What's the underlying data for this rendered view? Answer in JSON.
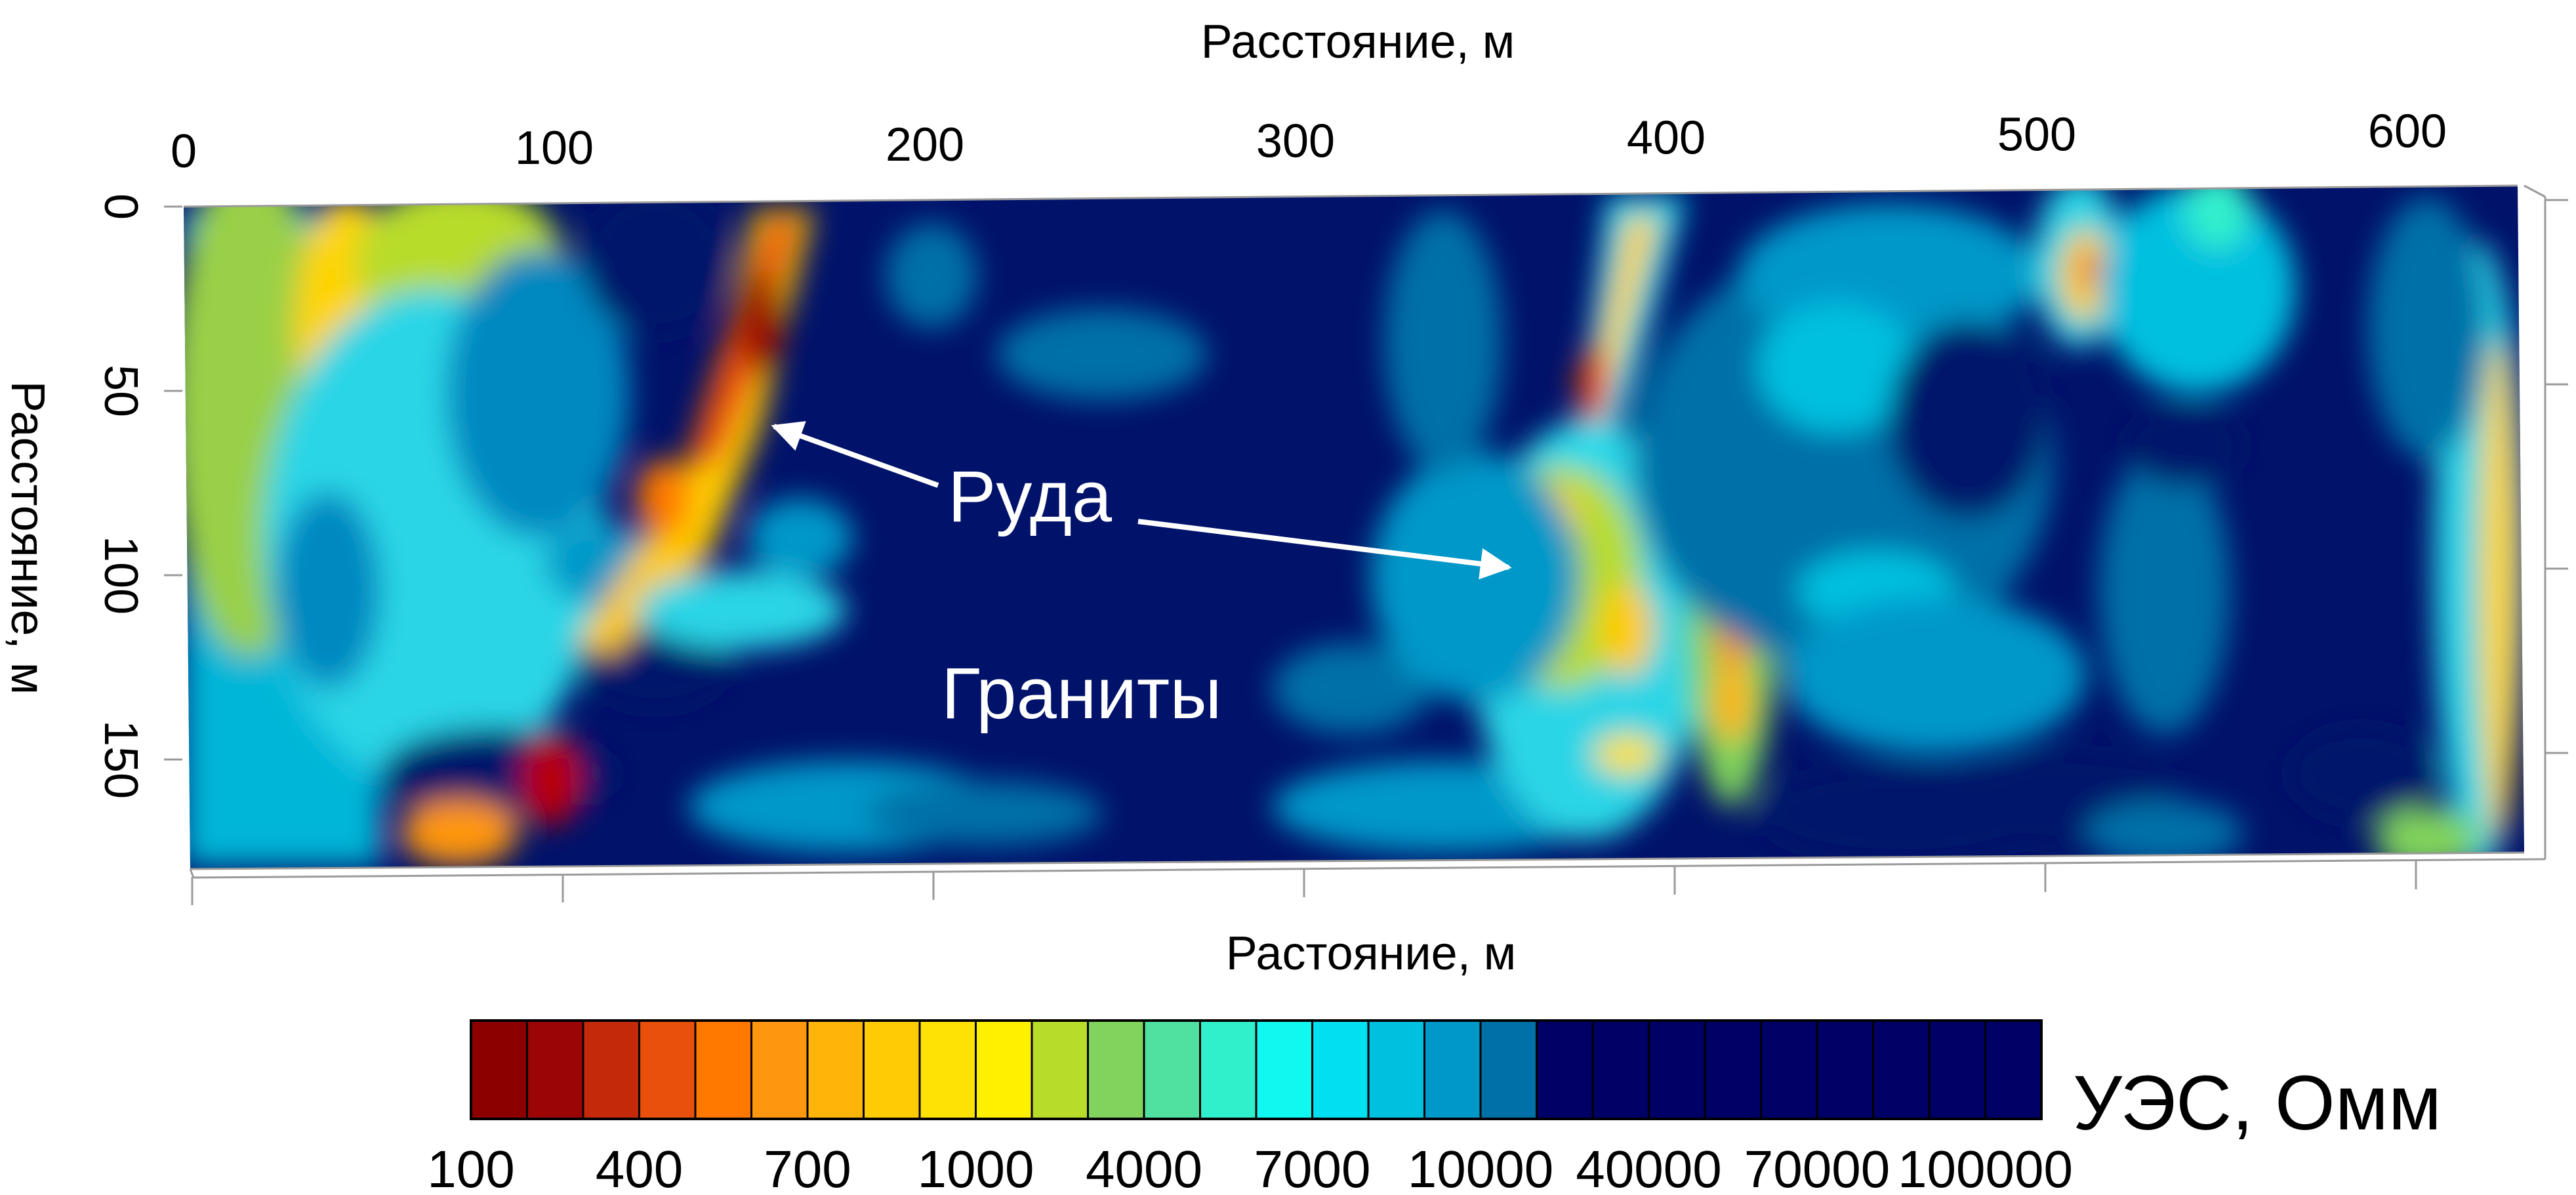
{
  "chart_data": {
    "type": "heatmap",
    "title": "",
    "xlabel_top": "Расстояние, м",
    "xlabel_bottom": "Растояние, м",
    "ylabel": "Расстояние, м",
    "x_ticks": [
      "0",
      "100",
      "200",
      "300",
      "400",
      "500",
      "600"
    ],
    "y_ticks": [
      "0",
      "50",
      "100",
      "150"
    ],
    "xlim": [
      0,
      630
    ],
    "ylim": [
      0,
      180
    ],
    "y_inverted": true,
    "annotations": {
      "ore": "Руда",
      "granite": "Граниты"
    },
    "colorbar": {
      "label": "УЭС, Омм",
      "tick_labels": [
        "100",
        "400",
        "700",
        "1000",
        "4000",
        "7000",
        "10000",
        "40000",
        "70000",
        "100000"
      ],
      "colors": [
        "#8c0000",
        "#9c0505",
        "#c42a0a",
        "#e8500c",
        "#ff7800",
        "#ff9610",
        "#ffb40a",
        "#ffcb05",
        "#ffe205",
        "#fff000",
        "#b8dc2a",
        "#80d35c",
        "#50e0a0",
        "#30f0cc",
        "#10f8f0",
        "#00e0f0",
        "#00c0e0",
        "#0098c8",
        "#0070a8",
        "#000066",
        "#000066",
        "#000066",
        "#000066",
        "#000066",
        "#000066",
        "#000066",
        "#000066",
        "#000066"
      ]
    }
  }
}
